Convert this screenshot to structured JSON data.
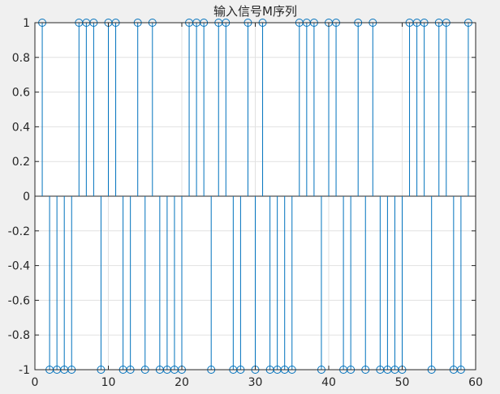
{
  "chart_data": {
    "type": "stem",
    "title": "输入信号M序列",
    "xlabel": "",
    "ylabel": "",
    "xlim": [
      0,
      60
    ],
    "ylim": [
      -1,
      1
    ],
    "x_ticks": [
      "0",
      "10",
      "20",
      "30",
      "40",
      "50",
      "60"
    ],
    "y_ticks": [
      "1",
      "0.8",
      "0.6",
      "0.4",
      "0.2",
      "0",
      "-0.2",
      "-0.4",
      "-0.6",
      "-0.8",
      "-1"
    ],
    "grid": true,
    "series": [
      {
        "x": [
          1,
          2,
          3,
          4,
          5,
          6,
          7,
          8,
          9,
          10,
          11,
          12,
          13,
          14,
          15,
          16,
          17,
          18,
          19,
          20,
          21,
          22,
          23,
          24,
          25,
          26,
          27,
          28,
          29,
          30,
          31,
          32,
          33,
          34,
          35,
          36,
          37,
          38,
          39,
          40,
          41,
          42,
          43,
          44,
          45,
          46,
          47,
          48,
          49,
          50,
          51,
          52,
          53,
          54,
          55,
          56,
          57,
          58,
          59
        ],
        "y": [
          1,
          -1,
          -1,
          -1,
          -1,
          1,
          1,
          1,
          -1,
          1,
          1,
          -1,
          -1,
          1,
          -1,
          1,
          -1,
          -1,
          -1,
          -1,
          1,
          1,
          1,
          -1,
          1,
          1,
          -1,
          -1,
          1,
          -1,
          1,
          -1,
          -1,
          -1,
          -1,
          1,
          1,
          1,
          -1,
          1,
          1,
          -1,
          -1,
          1,
          -1,
          1,
          -1,
          -1,
          -1,
          -1,
          1,
          1,
          1,
          -1,
          1,
          1,
          -1,
          -1,
          1
        ]
      }
    ],
    "colors": {
      "stem": "#0072bd",
      "axes_background": "#ffffff",
      "figure_background": "#f0f0f0",
      "grid": "#e1e1e1",
      "axes": "#262626"
    }
  }
}
